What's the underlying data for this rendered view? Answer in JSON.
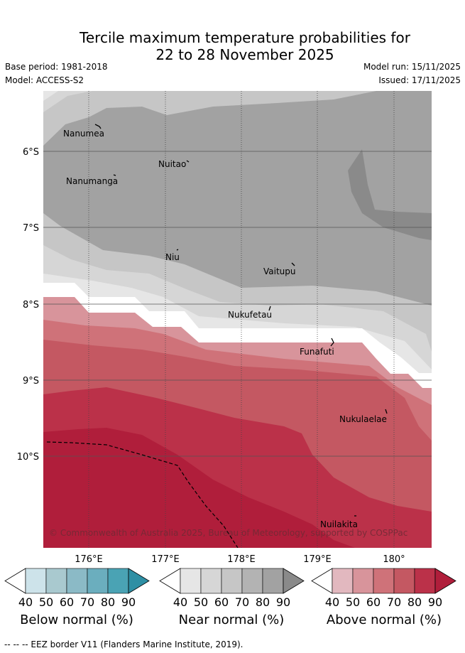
{
  "header": {
    "title_line1": "Tercile maximum temperature probabilities for",
    "title_line2": "22 to 28 November 2025",
    "base_period": "Base period: 1981-2018",
    "model": "Model: ACCESS-S2",
    "model_run": "Model run: 15/11/2025",
    "issued": "Issued: 17/11/2025"
  },
  "map": {
    "lat_labels": [
      "6°S",
      "7°S",
      "8°S",
      "9°S",
      "10°S"
    ],
    "lon_labels": [
      "176°E",
      "177°E",
      "178°E",
      "179°E",
      "180°"
    ],
    "places": [
      "Nanumea",
      "Nuitao",
      "Nanumanga",
      "Niu",
      "Vaitupu",
      "Nukufetau",
      "Funafuti",
      "Nukulaelae",
      "Nuilakita"
    ],
    "copyright": "© Commonwealth of Australia 2025, Bureau of Meteorology, supported by COSPPac"
  },
  "colorbars": [
    {
      "label": "Below normal (%)",
      "ticks": [
        "40",
        "50",
        "60",
        "70",
        "80",
        "90"
      ],
      "colors": [
        "#cde3ea",
        "#a9c9cf",
        "#8bbac6",
        "#6baebe",
        "#4aa3b4",
        "#2e8fa4"
      ]
    },
    {
      "label": "Near normal (%)",
      "ticks": [
        "40",
        "50",
        "60",
        "70",
        "80",
        "90"
      ],
      "colors": [
        "#e6e6e6",
        "#d6d6d6",
        "#c6c6c6",
        "#b3b3b3",
        "#a2a2a2",
        "#8a8a8a"
      ]
    },
    {
      "label": "Above normal (%)",
      "ticks": [
        "40",
        "50",
        "60",
        "70",
        "80",
        "90"
      ],
      "colors": [
        "#e2b8bf",
        "#d8949b",
        "#cf7279",
        "#c45862",
        "#bb3149",
        "#b01e3b"
      ]
    }
  ],
  "footer": "--  --  -- EEZ border V11 (Flanders Marine Institute, 2019)."
}
